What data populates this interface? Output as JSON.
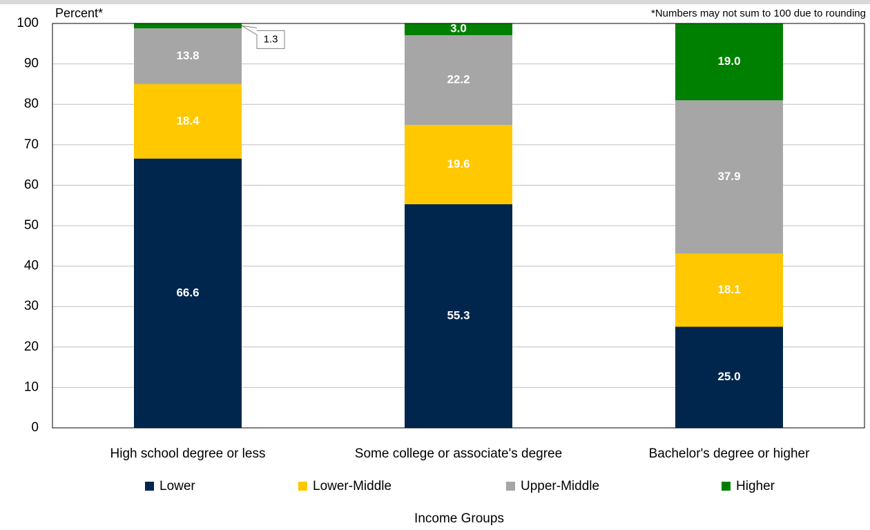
{
  "chart_data": {
    "type": "stacked_bar",
    "y_label": "Percent*",
    "note": "*Numbers may not sum to 100 due to rounding",
    "legend_title": "Income Groups",
    "categories": [
      "High school degree or less",
      "Some college or associate's degree",
      "Bachelor's degree or higher"
    ],
    "series": [
      {
        "name": "Lower",
        "color": "#00264d",
        "values": [
          66.6,
          55.3,
          25.0
        ],
        "value_labels": [
          "66.6",
          "55.3",
          "25.0"
        ]
      },
      {
        "name": "Lower-Middle",
        "color": "#ffc800",
        "values": [
          18.4,
          19.6,
          18.1
        ],
        "value_labels": [
          "18.4",
          "19.6",
          "18.1"
        ]
      },
      {
        "name": "Upper-Middle",
        "color": "#a6a6a6",
        "values": [
          13.8,
          22.2,
          37.9
        ],
        "value_labels": [
          "13.8",
          "22.2",
          "37.9"
        ]
      },
      {
        "name": "Higher",
        "color": "#008000",
        "values": [
          1.3,
          3.0,
          19.0
        ],
        "value_labels": [
          "1.3",
          "3.0",
          "19.0"
        ]
      }
    ],
    "ylim": [
      0,
      100
    ],
    "yticks": [
      0,
      10,
      20,
      30,
      40,
      50,
      60,
      70,
      80,
      90,
      100
    ],
    "grid": true,
    "legend": "bottom"
  }
}
